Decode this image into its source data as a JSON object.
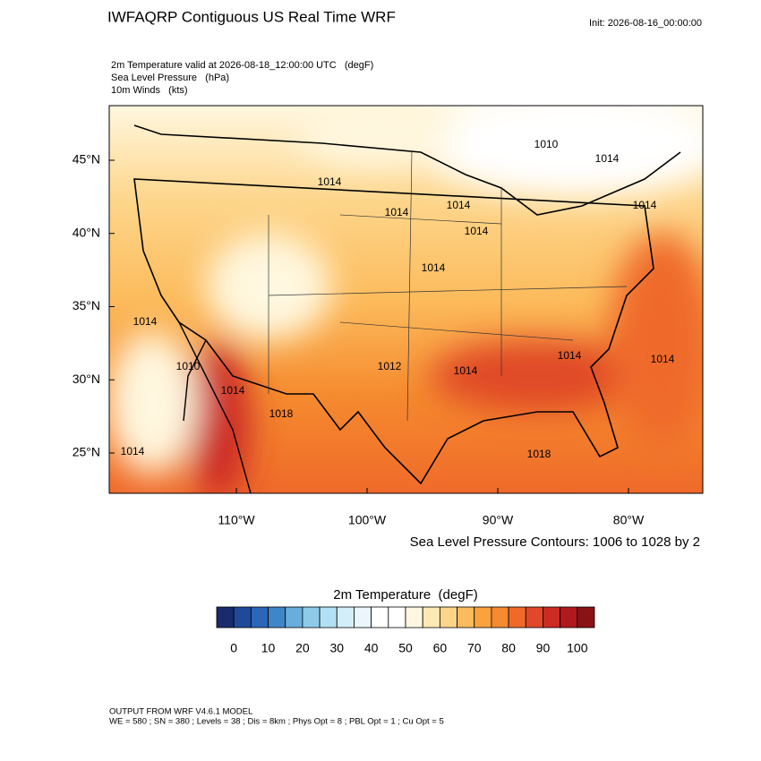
{
  "header": {
    "title": "IWFAQRP Contiguous US Real Time WRF",
    "init": "Init: 2026-08-16_00:00:00",
    "lines": [
      "2m Temperature valid at 2026-08-18_12:00:00 UTC   (degF)",
      "Sea Level Pressure   (hPa)",
      "10m Winds   (kts)"
    ]
  },
  "map": {
    "lat_ticks": [
      {
        "value": 45,
        "label": "45°N"
      },
      {
        "value": 40,
        "label": "40°N"
      },
      {
        "value": 35,
        "label": "35°N"
      },
      {
        "value": 30,
        "label": "30°N"
      },
      {
        "value": 25,
        "label": "25°N"
      }
    ],
    "lon_ticks": [
      {
        "value": -110,
        "label": "110°W"
      },
      {
        "value": -100,
        "label": "100°W"
      },
      {
        "value": -90,
        "label": "90°W"
      },
      {
        "value": -80,
        "label": "80°W"
      }
    ],
    "contour_labels": [
      "1010",
      "1014",
      "1014",
      "1014",
      "1014",
      "1014",
      "1014",
      "1014",
      "1014",
      "1012",
      "1014",
      "1014",
      "1014",
      "1014",
      "1018",
      "1010",
      "1014",
      "1018"
    ],
    "contour_note": "Sea Level Pressure Contours: 1006 to 1028 by 2"
  },
  "colorbar": {
    "title": "2m Temperature  (degF)",
    "labels": [
      0,
      10,
      20,
      30,
      40,
      50,
      60,
      70,
      80,
      90,
      100
    ],
    "colors": [
      "#1a2a6c",
      "#1f4a99",
      "#2b66b8",
      "#3f86c8",
      "#68aedc",
      "#8ecbeb",
      "#b3e0f5",
      "#d4eef9",
      "#eaf6fc",
      "#ffffff",
      "#ffffff",
      "#fff7df",
      "#fde9b3",
      "#fdd58a",
      "#fcbb5c",
      "#f9a23e",
      "#f58a2e",
      "#ef6a2a",
      "#e04828",
      "#cc2a25",
      "#b01a1f",
      "#8a1216"
    ]
  },
  "footer": [
    "OUTPUT FROM WRF V4.6.1 MODEL",
    "WE = 580 ; SN = 380 ; Levels = 38 ; Dis = 8km ; Phys Opt = 8 ; PBL Opt = 1 ; Cu Opt = 5"
  ]
}
